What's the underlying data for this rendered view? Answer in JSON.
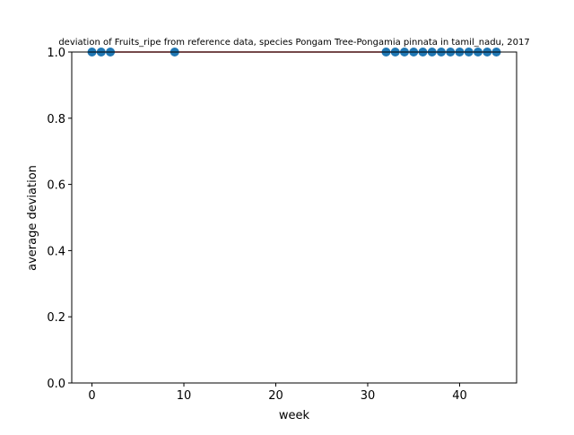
{
  "chart_data": {
    "type": "scatter",
    "title": "deviation of Fruits_ripe from reference data, species Pongam Tree-Pongamia pinnata in tamil_nadu, 2017",
    "xlabel": "week",
    "ylabel": "average deviation",
    "xlim": [
      -2.2,
      46.2
    ],
    "ylim": [
      0.0,
      1.0
    ],
    "xticks": [
      0,
      10,
      20,
      30,
      40
    ],
    "yticks": [
      0.0,
      0.2,
      0.4,
      0.6,
      0.8,
      1.0
    ],
    "xtick_labels": [
      "0",
      "10",
      "20",
      "30",
      "40"
    ],
    "ytick_labels": [
      "0.0",
      "0.2",
      "0.4",
      "0.6",
      "0.8",
      "1.0"
    ],
    "grid": false,
    "series": [
      {
        "x": [
          0,
          1,
          2,
          9,
          32,
          33,
          34,
          35,
          36,
          37,
          38,
          39,
          40,
          41,
          42,
          43,
          44
        ],
        "y": [
          1,
          1,
          1,
          1,
          1,
          1,
          1,
          1,
          1,
          1,
          1,
          1,
          1,
          1,
          1,
          1,
          1
        ]
      }
    ],
    "colors": {
      "marker": "#1f77b4",
      "accent_line": "#d62728"
    }
  }
}
